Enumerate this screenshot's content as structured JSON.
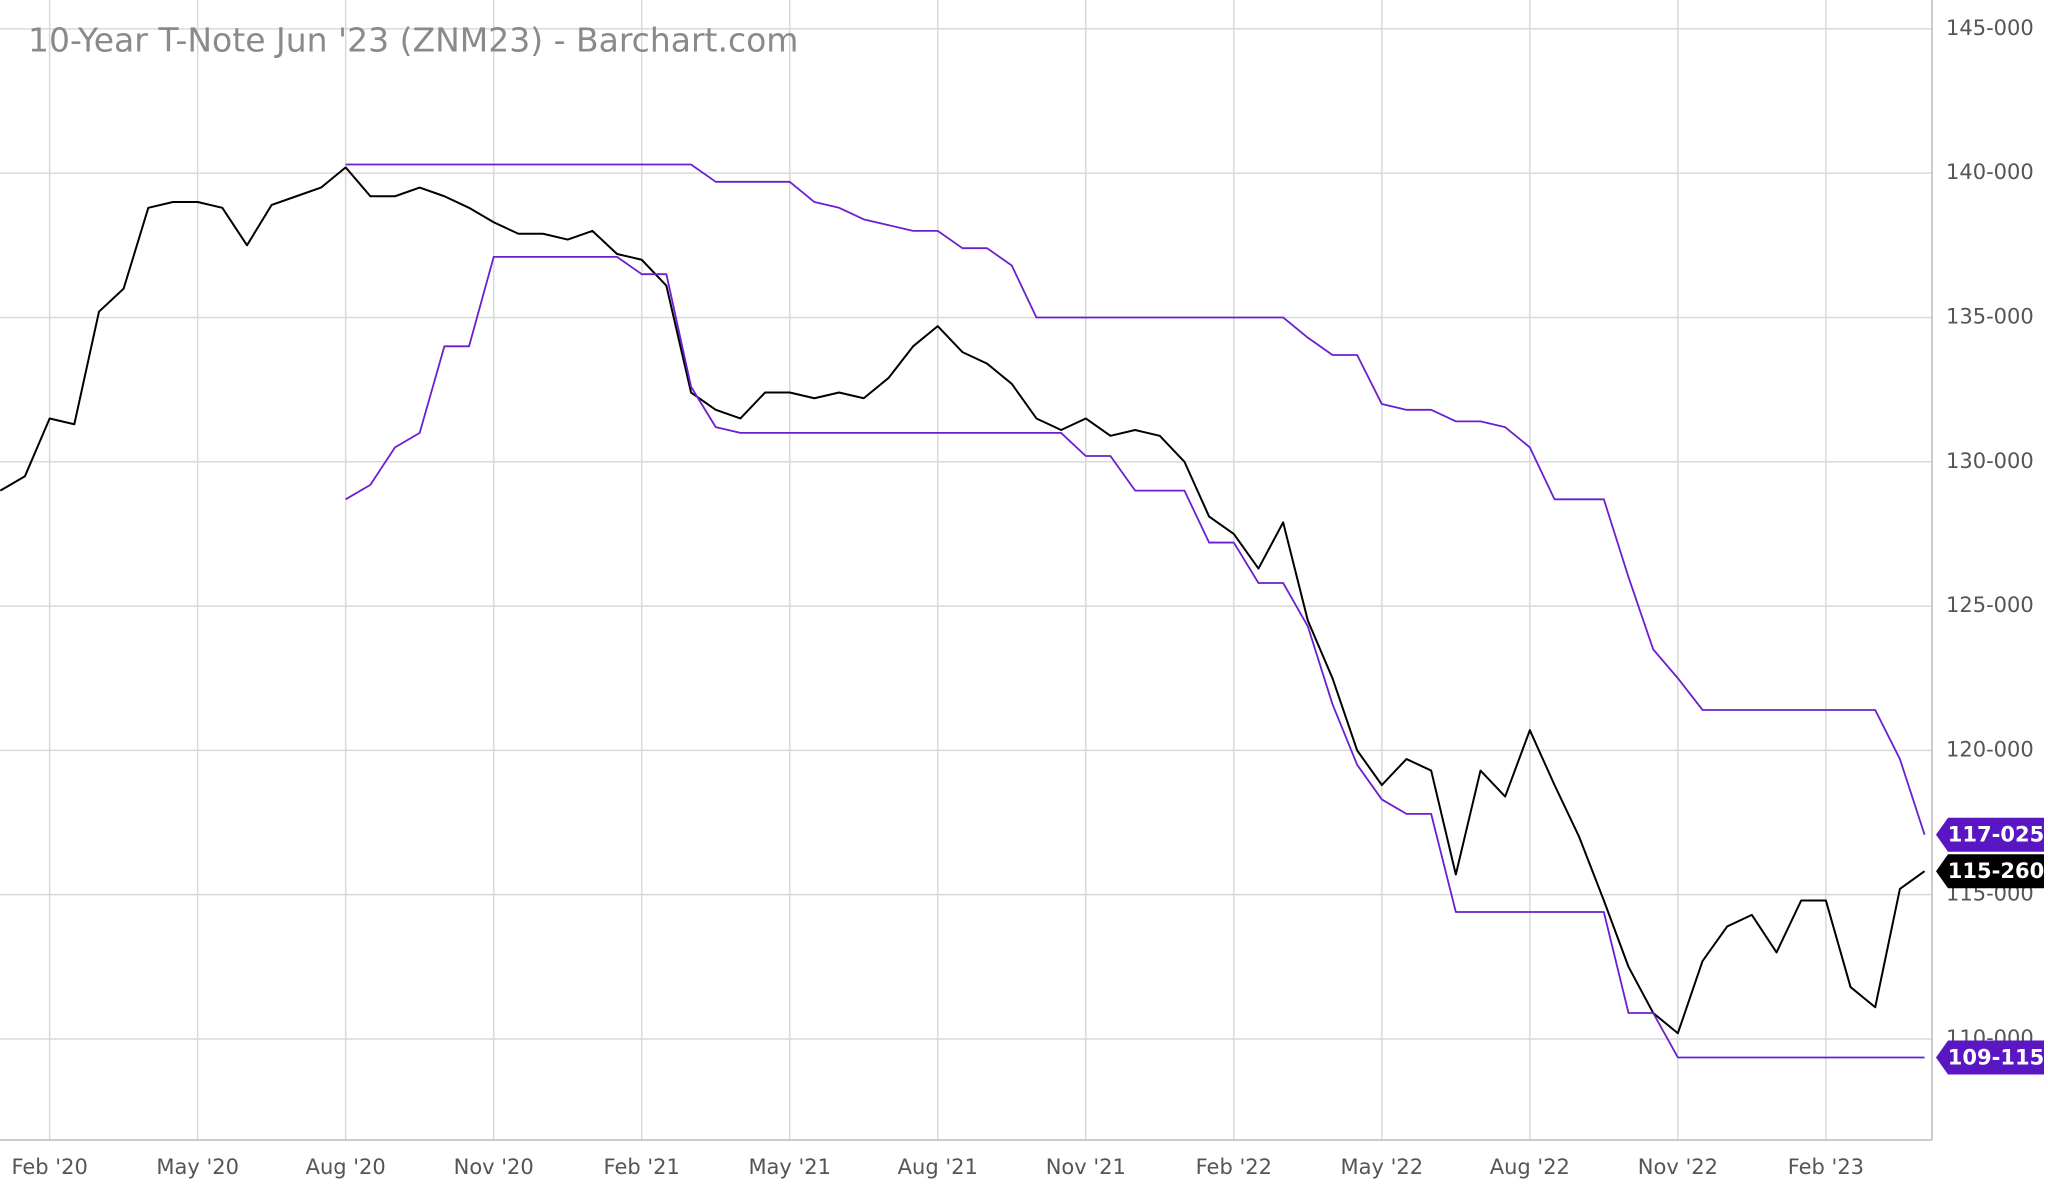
{
  "chart_data": {
    "type": "line",
    "title": "10-Year T-Note Jun '23 (ZNM23) - Barchart.com",
    "categories": [
      null,
      null,
      "Feb '20",
      null,
      null,
      null,
      null,
      null,
      "May '20",
      null,
      null,
      null,
      null,
      null,
      "Aug '20",
      null,
      null,
      null,
      null,
      null,
      "Nov '20",
      null,
      null,
      null,
      null,
      null,
      "Feb '21",
      null,
      null,
      null,
      null,
      null,
      "May '21",
      null,
      null,
      null,
      null,
      null,
      "Aug '21",
      null,
      null,
      null,
      null,
      null,
      "Nov '21",
      null,
      null,
      null,
      null,
      null,
      "Feb '22",
      null,
      null,
      null,
      null,
      null,
      "May '22",
      null,
      null,
      null,
      null,
      null,
      "Aug '22",
      null,
      null,
      null,
      null,
      null,
      "Nov '22",
      null,
      null,
      null,
      null,
      null,
      "Feb '23",
      null,
      null,
      null,
      null
    ],
    "series": [
      {
        "color": "#000000",
        "values": [
          129.0,
          129.5,
          131.5,
          131.3,
          135.2,
          136.0,
          138.8,
          139.0,
          139.0,
          138.8,
          137.5,
          138.9,
          139.2,
          139.5,
          140.2,
          139.2,
          139.2,
          139.5,
          139.2,
          138.8,
          138.3,
          137.9,
          137.9,
          137.7,
          138.0,
          137.2,
          137.0,
          136.1,
          132.4,
          131.8,
          131.5,
          132.4,
          132.4,
          132.2,
          132.4,
          132.2,
          132.9,
          134.0,
          134.7,
          133.8,
          133.4,
          132.7,
          131.5,
          131.1,
          131.5,
          130.9,
          131.1,
          130.9,
          130.0,
          128.1,
          127.5,
          126.3,
          127.9,
          124.5,
          122.5,
          120.0,
          118.8,
          119.7,
          119.3,
          115.7,
          119.3,
          118.4,
          120.7,
          118.8,
          117.0,
          114.8,
          112.5,
          110.9,
          110.2,
          112.7,
          113.9,
          114.3,
          113.0,
          114.8,
          114.8,
          111.8,
          111.1,
          115.2,
          115.8125
        ],
        "value_labels": [
          null,
          null,
          null,
          null,
          null,
          null,
          null,
          null,
          null,
          null,
          null,
          null,
          null,
          null,
          null,
          null,
          null,
          null,
          null,
          null,
          null,
          null,
          null,
          null,
          null,
          null,
          null,
          null,
          null,
          null,
          null,
          null,
          null,
          null,
          null,
          null,
          null,
          null,
          null,
          null,
          null,
          null,
          null,
          null,
          null,
          null,
          null,
          null,
          null,
          null,
          null,
          null,
          null,
          null,
          null,
          null,
          null,
          null,
          null,
          null,
          null,
          null,
          null,
          null,
          null,
          null,
          null,
          null,
          null,
          null,
          null,
          null,
          null,
          null,
          null,
          null,
          null,
          null,
          "115-260"
        ],
        "badge_color": "#000000"
      },
      {
        "color": "#6a1fd1",
        "values": [
          null,
          null,
          null,
          null,
          null,
          null,
          null,
          null,
          null,
          null,
          null,
          null,
          null,
          null,
          140.3,
          140.3,
          140.3,
          140.3,
          140.3,
          140.3,
          140.3,
          140.3,
          140.3,
          140.3,
          140.3,
          140.3,
          140.3,
          140.3,
          140.3,
          139.7,
          139.7,
          139.7,
          139.7,
          139.0,
          138.8,
          138.4,
          138.2,
          138.0,
          138.0,
          137.4,
          137.4,
          136.8,
          135.0,
          135.0,
          135.0,
          135.0,
          135.0,
          135.0,
          135.0,
          135.0,
          135.0,
          135.0,
          135.0,
          134.3,
          133.7,
          133.7,
          132.0,
          131.8,
          131.8,
          131.4,
          131.4,
          131.2,
          130.5,
          128.7,
          128.7,
          128.7,
          126.0,
          123.5,
          122.5,
          121.4,
          121.4,
          121.4,
          121.4,
          121.4,
          121.4,
          121.4,
          121.4,
          119.7,
          117.078
        ],
        "value_labels": [
          null,
          null,
          null,
          null,
          null,
          null,
          null,
          null,
          null,
          null,
          null,
          null,
          null,
          null,
          null,
          null,
          null,
          null,
          null,
          null,
          null,
          null,
          null,
          null,
          null,
          null,
          null,
          null,
          null,
          null,
          null,
          null,
          null,
          null,
          null,
          null,
          null,
          null,
          null,
          null,
          null,
          null,
          null,
          null,
          null,
          null,
          null,
          null,
          null,
          null,
          null,
          null,
          null,
          null,
          null,
          null,
          null,
          null,
          null,
          null,
          null,
          null,
          null,
          null,
          null,
          null,
          null,
          null,
          null,
          null,
          null,
          null,
          null,
          null,
          null,
          null,
          null,
          null,
          "117-025"
        ],
        "badge_color": "#5b16c4"
      },
      {
        "color": "#6a1fd1",
        "values": [
          null,
          null,
          null,
          null,
          null,
          null,
          null,
          null,
          null,
          null,
          null,
          null,
          null,
          null,
          128.7,
          129.2,
          130.5,
          131.0,
          134.0,
          134.0,
          137.1,
          137.1,
          137.1,
          137.1,
          137.1,
          137.1,
          136.5,
          136.5,
          132.6,
          131.2,
          131.0,
          131.0,
          131.0,
          131.0,
          131.0,
          131.0,
          131.0,
          131.0,
          131.0,
          131.0,
          131.0,
          131.0,
          131.0,
          131.0,
          130.2,
          130.2,
          129.0,
          129.0,
          129.0,
          127.2,
          127.2,
          125.8,
          125.8,
          124.3,
          121.6,
          119.5,
          118.3,
          117.8,
          117.8,
          114.4,
          114.4,
          114.4,
          114.4,
          114.4,
          114.4,
          114.4,
          110.9,
          110.9,
          109.359,
          109.359,
          109.359,
          109.359,
          109.359,
          109.359,
          109.359,
          109.359,
          109.359,
          109.359,
          109.359
        ],
        "value_labels": [
          null,
          null,
          null,
          null,
          null,
          null,
          null,
          null,
          null,
          null,
          null,
          null,
          null,
          null,
          null,
          null,
          null,
          null,
          null,
          null,
          null,
          null,
          null,
          null,
          null,
          null,
          null,
          null,
          null,
          null,
          null,
          null,
          null,
          null,
          null,
          null,
          null,
          null,
          null,
          null,
          null,
          null,
          null,
          null,
          null,
          null,
          null,
          null,
          null,
          null,
          null,
          null,
          null,
          null,
          null,
          null,
          null,
          null,
          null,
          null,
          null,
          null,
          null,
          null,
          null,
          null,
          null,
          null,
          null,
          null,
          null,
          null,
          null,
          null,
          null,
          null,
          null,
          null,
          "109-115"
        ],
        "badge_color": "#5b16c4"
      }
    ],
    "ylim": [
      106.5,
      146
    ],
    "yticks": [
      {
        "value": 110,
        "label": "110-000"
      },
      {
        "value": 115,
        "label": "115-000"
      },
      {
        "value": 120,
        "label": "120-000"
      },
      {
        "value": 125,
        "label": "125-000"
      },
      {
        "value": 130,
        "label": "130-000"
      },
      {
        "value": 135,
        "label": "135-000"
      },
      {
        "value": 140,
        "label": "140-000"
      },
      {
        "value": 145,
        "label": "145-000"
      }
    ],
    "grid": true
  }
}
